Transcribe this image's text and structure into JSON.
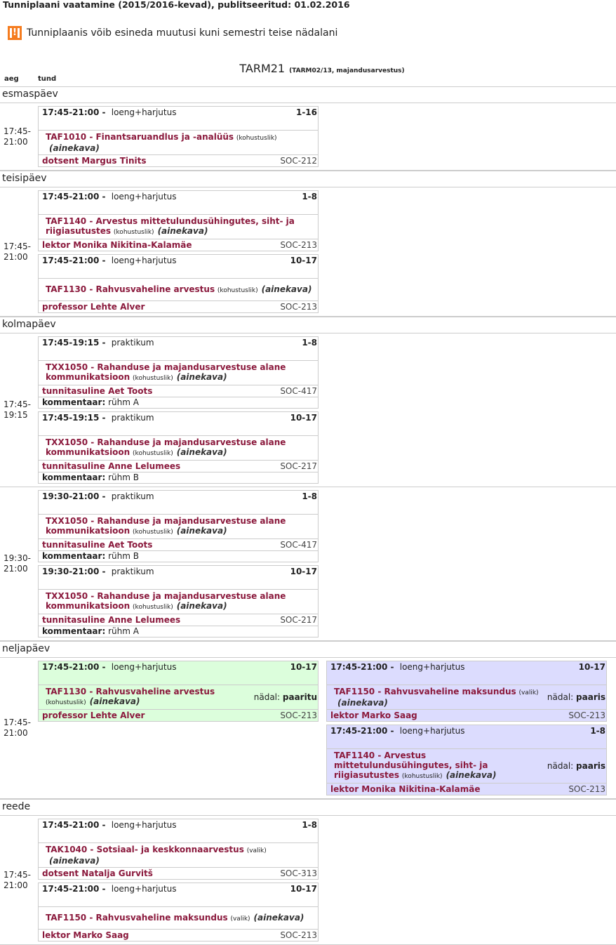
{
  "title": "Tunniplaani vaatamine (2015/2016-kevad), publitseeritud: 01.02.2016",
  "notice": {
    "icon": "warning-icon",
    "text": "Tunniplaanis võib esineda muutusi kuni semestri teise nädalani",
    "color": "#f57c1f"
  },
  "group": {
    "name": "TARM21",
    "details": "(TARM02/13, majandusarvestus)"
  },
  "columns": {
    "time": "aeg",
    "lesson": "tund"
  },
  "colors": {
    "link": "#8b1a3d",
    "green": "#dcfedc",
    "blue": "#dcdcfe"
  },
  "days": [
    {
      "name": "esmaspäev",
      "slots": [
        {
          "time": "17:45-\n21:00",
          "columns": [
            [
              {
                "time": "17:45-21:00 -",
                "type": "loeng+harjutus",
                "weeks": "1-16",
                "code_title": "TAF1010 - Finantsaruandlus ja -analüüs",
                "status": "(kohustuslik)",
                "link": "(ainekava)",
                "teacher": "dotsent Margus Tinits",
                "room": "SOC-212"
              }
            ]
          ]
        }
      ]
    },
    {
      "name": "teisipäev",
      "slots": [
        {
          "time": "17:45-\n21:00",
          "columns": [
            [
              {
                "time": "17:45-21:00 -",
                "type": "loeng+harjutus",
                "weeks": "1-8",
                "code_title": "TAF1140 - Arvestus mittetulundusühingutes, siht- ja riigiasutustes",
                "status": "(kohustuslik)",
                "link": "(ainekava)",
                "teacher": "lektor Monika Nikitina-Kalamäe",
                "room": "SOC-213"
              },
              {
                "time": "17:45-21:00 -",
                "type": "loeng+harjutus",
                "weeks": "10-17",
                "code_title": "TAF1130 - Rahvusvaheline arvestus",
                "status": "(kohustuslik)",
                "link": "(ainekava)",
                "teacher": "professor Lehte Alver",
                "room": "SOC-213"
              }
            ]
          ]
        }
      ]
    },
    {
      "name": "kolmapäev",
      "slots": [
        {
          "time": "17:45-\n19:15",
          "columns": [
            [
              {
                "time": "17:45-19:15 -",
                "type": "praktikum",
                "weeks": "1-8",
                "code_title": "TXX1050 - Rahanduse ja majandusarvestuse alane kommunikatsioon",
                "status": "(kohustuslik)",
                "link": "(ainekava)",
                "teacher": "tunnitasuline Aet Toots",
                "room": "SOC-417",
                "comment_label": "kommentaar:",
                "comment": "rühm A"
              },
              {
                "time": "17:45-19:15 -",
                "type": "praktikum",
                "weeks": "10-17",
                "code_title": "TXX1050 - Rahanduse ja majandusarvestuse alane kommunikatsioon",
                "status": "(kohustuslik)",
                "link": "(ainekava)",
                "teacher": "tunnitasuline Anne Lelumees",
                "room": "SOC-217",
                "comment_label": "kommentaar:",
                "comment": "rühm B"
              }
            ]
          ]
        },
        {
          "time": "19:30-\n21:00",
          "columns": [
            [
              {
                "time": "19:30-21:00 -",
                "type": "praktikum",
                "weeks": "1-8",
                "code_title": "TXX1050 - Rahanduse ja majandusarvestuse alane kommunikatsioon",
                "status": "(kohustuslik)",
                "link": "(ainekava)",
                "teacher": "tunnitasuline Aet Toots",
                "room": "SOC-417",
                "comment_label": "kommentaar:",
                "comment": "rühm B"
              },
              {
                "time": "19:30-21:00 -",
                "type": "praktikum",
                "weeks": "10-17",
                "code_title": "TXX1050 - Rahanduse ja majandusarvestuse alane kommunikatsioon",
                "status": "(kohustuslik)",
                "link": "(ainekava)",
                "teacher": "tunnitasuline Anne Lelumees",
                "room": "SOC-217",
                "comment_label": "kommentaar:",
                "comment": "rühm A"
              }
            ]
          ]
        }
      ]
    },
    {
      "name": "neljapäev",
      "slots": [
        {
          "time": "17:45-\n21:00",
          "columns": [
            [
              {
                "time": "17:45-21:00 -",
                "type": "loeng+harjutus",
                "weeks": "10-17",
                "code_title": "TAF1130 - Rahvusvaheline arvestus",
                "status": "(kohustuslik)",
                "link": "(ainekava)",
                "teacher": "professor Lehte Alver",
                "room": "SOC-213",
                "week_label": "nädal:",
                "week": "paaritu",
                "bg": "green"
              }
            ],
            [
              {
                "time": "17:45-21:00 -",
                "type": "loeng+harjutus",
                "weeks": "10-17",
                "code_title": "TAF1150 - Rahvusvaheline maksundus",
                "status": "(valik)",
                "link": "(ainekava)",
                "teacher": "lektor Marko Saag",
                "room": "SOC-213",
                "week_label": "nädal:",
                "week": "paaris",
                "bg": "blue"
              },
              {
                "time": "17:45-21:00 -",
                "type": "loeng+harjutus",
                "weeks": "1-8",
                "code_title": "TAF1140 - Arvestus mittetulundusühingutes, siht- ja riigiasutustes",
                "status": "(kohustuslik)",
                "link": "(ainekava)",
                "teacher": "lektor Monika Nikitina-Kalamäe",
                "room": "SOC-213",
                "week_label": "nädal:",
                "week": "paaris",
                "bg": "blue"
              }
            ]
          ]
        }
      ]
    },
    {
      "name": "reede",
      "slots": [
        {
          "time": "17:45-\n21:00",
          "columns": [
            [
              {
                "time": "17:45-21:00 -",
                "type": "loeng+harjutus",
                "weeks": "1-8",
                "code_title": "TAK1040 - Sotsiaal- ja keskkonnaarvestus",
                "status": "(valik)",
                "link": "(ainekava)",
                "teacher": "dotsent Natalja Gurvitš",
                "room": "SOC-313"
              },
              {
                "time": "17:45-21:00 -",
                "type": "loeng+harjutus",
                "weeks": "10-17",
                "code_title": "TAF1150 - Rahvusvaheline maksundus",
                "status": "(valik)",
                "link": "(ainekava)",
                "teacher": "lektor Marko Saag",
                "room": "SOC-213"
              }
            ]
          ]
        }
      ]
    }
  ]
}
